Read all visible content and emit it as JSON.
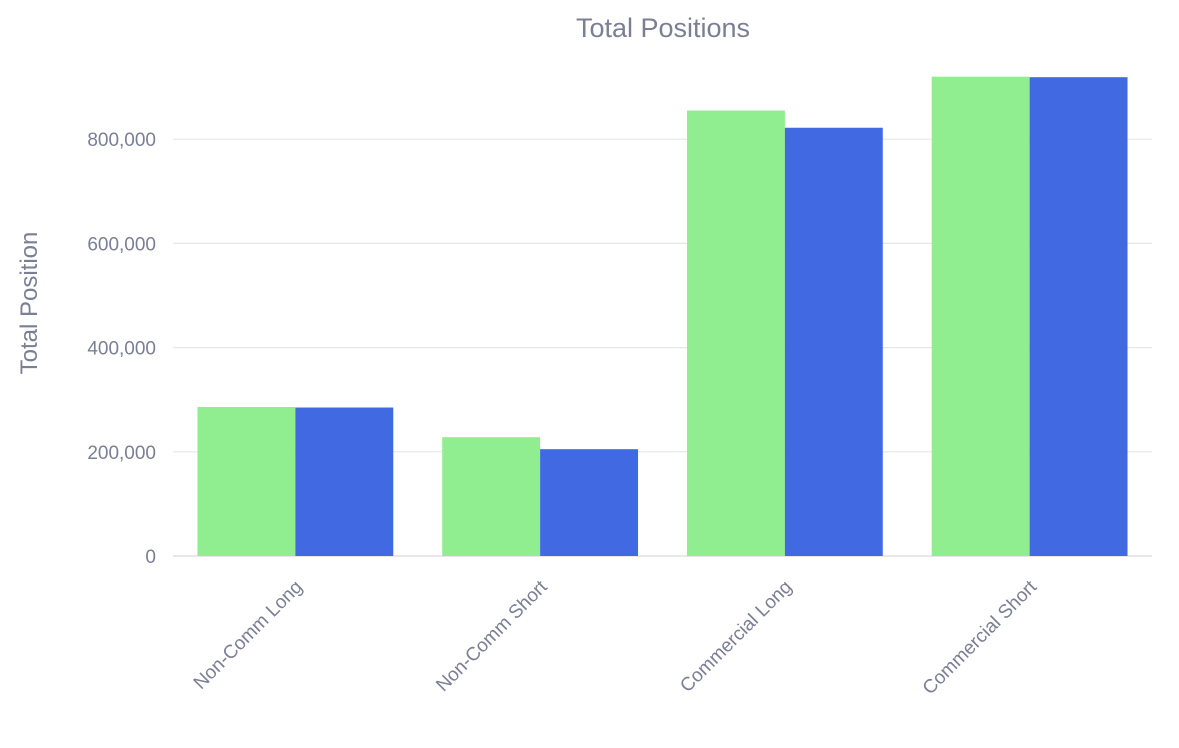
{
  "chart_data": {
    "type": "bar",
    "title": "Total Positions",
    "xlabel": "",
    "ylabel": "Total Position",
    "categories": [
      "Non-Comm Long",
      "Non-Comm Short",
      "Commercial Long",
      "Commercial Short"
    ],
    "series": [
      {
        "values": [
          286000,
          228000,
          855000,
          920000
        ],
        "color": "#90ee90"
      },
      {
        "values": [
          285000,
          205000,
          822000,
          919000
        ],
        "color": "#4169e1"
      }
    ],
    "ylim": [
      0,
      1000000
    ],
    "yticks": [
      0,
      200000,
      400000,
      600000,
      800000
    ],
    "ytick_labels": [
      "0",
      "200,000",
      "400,000",
      "600,000",
      "800,000"
    ],
    "grid": true,
    "legend": "none"
  }
}
